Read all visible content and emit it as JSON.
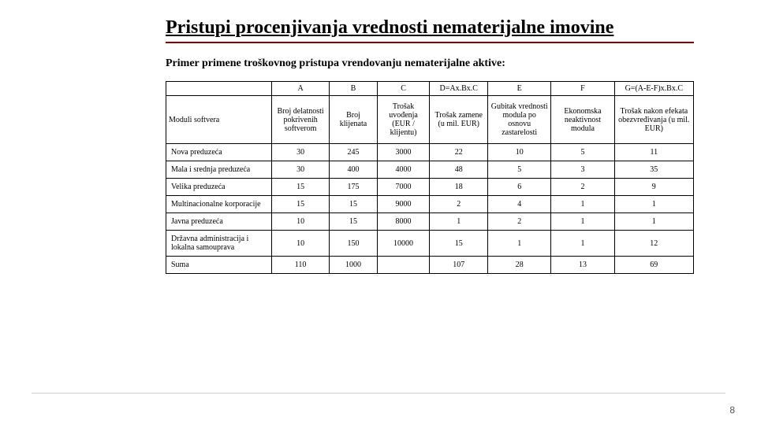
{
  "title": "Pristupi procenjivanja vrednosti nematerijalne imovine",
  "subtitle": "Primer primene troškovnog pristupa vrendovanju nematerijalne aktive:",
  "page_number": "8",
  "table": {
    "top_headers": [
      "",
      "A",
      "B",
      "C",
      "D=Ax.Bx.C",
      "E",
      "F",
      "G=(A-E-F)x.Bx.C"
    ],
    "desc_headers": [
      "Moduli softvera",
      "Broj delatnosti pokrivenih softverom",
      "Broj klijenata",
      "Trošak uvođenja (EUR / klijentu)",
      "Trošak zamene (u mil. EUR)",
      "Gubitak vrednosti modula po osnovu zastarelosti",
      "Ekonomska neaktivnost modula",
      "Trošak nakon efekata obezvređivanja (u mil. EUR)"
    ],
    "rows": [
      {
        "label": "Nova preduzeća",
        "cells": [
          "30",
          "245",
          "3000",
          "22",
          "10",
          "5",
          "11"
        ]
      },
      {
        "label": "Mala i srednja preduzeća",
        "cells": [
          "30",
          "400",
          "4000",
          "48",
          "5",
          "3",
          "35"
        ]
      },
      {
        "label": "Velika preduzeća",
        "cells": [
          "15",
          "175",
          "7000",
          "18",
          "6",
          "2",
          "9"
        ]
      },
      {
        "label": "Multinacionalne korporacije",
        "cells": [
          "15",
          "15",
          "9000",
          "2",
          "4",
          "1",
          "1"
        ]
      },
      {
        "label": "Javna preduzeća",
        "cells": [
          "10",
          "15",
          "8000",
          "1",
          "2",
          "1",
          "1"
        ]
      },
      {
        "label": "Državna administracija i lokalna samouprava",
        "cells": [
          "10",
          "150",
          "10000",
          "15",
          "1",
          "1",
          "12"
        ]
      }
    ],
    "sum": {
      "label": "Suma",
      "cells": [
        "110",
        "1000",
        "",
        "107",
        "28",
        "13",
        "69"
      ]
    }
  },
  "colors": {
    "rule": "#8b0000",
    "text": "#000000",
    "bg": "#ffffff",
    "footer_line": "#d0d0d0",
    "pagenum": "#555555"
  }
}
